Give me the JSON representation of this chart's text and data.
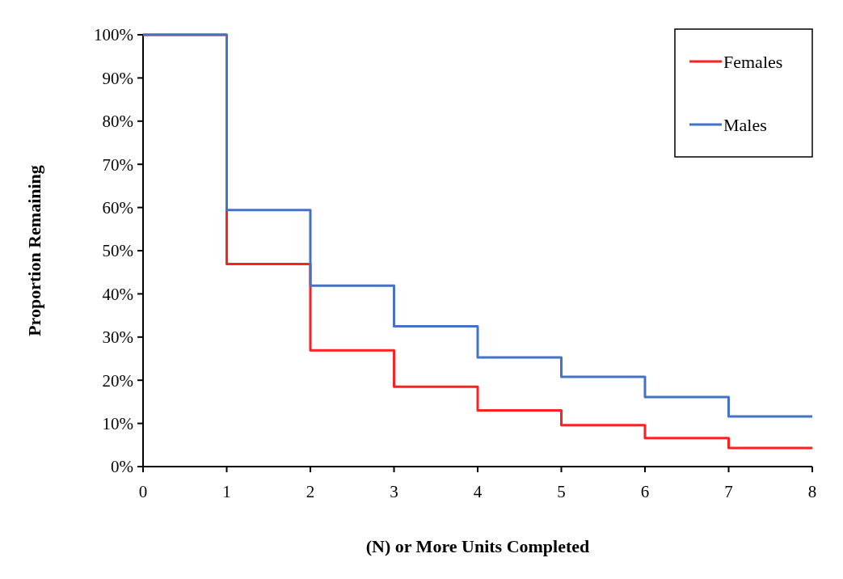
{
  "chart_data": {
    "type": "step",
    "xlabel": "(N) or More Units Completed",
    "ylabel": "Proportion Remaining",
    "x": [
      0,
      1,
      2,
      3,
      4,
      5,
      6,
      7,
      8
    ],
    "series": [
      {
        "name": "Females",
        "color": "#ff2020",
        "values": [
          100,
          46.9,
          26.9,
          18.5,
          13.0,
          9.6,
          6.6,
          4.3,
          4.3
        ]
      },
      {
        "name": "Males",
        "color": "#4472c4",
        "values": [
          100,
          59.4,
          41.9,
          32.5,
          25.3,
          20.8,
          16.1,
          11.6,
          11.6
        ]
      }
    ],
    "xlim": [
      0,
      8
    ],
    "xticks": [
      0,
      1,
      2,
      3,
      4,
      5,
      6,
      7,
      8
    ],
    "ylim": [
      0,
      100
    ],
    "yticks": [
      {
        "value": 0,
        "label": "0%"
      },
      {
        "value": 10,
        "label": "10%"
      },
      {
        "value": 20,
        "label": "20%"
      },
      {
        "value": 30,
        "label": "30%"
      },
      {
        "value": 40,
        "label": "40%"
      },
      {
        "value": 50,
        "label": "50%"
      },
      {
        "value": 60,
        "label": "60%"
      },
      {
        "value": 70,
        "label": "70%"
      },
      {
        "value": 80,
        "label": "80%"
      },
      {
        "value": 90,
        "label": "90%"
      },
      {
        "value": 100,
        "label": "100%"
      }
    ],
    "grid": false,
    "legend": "top right",
    "line_style": "solid"
  }
}
